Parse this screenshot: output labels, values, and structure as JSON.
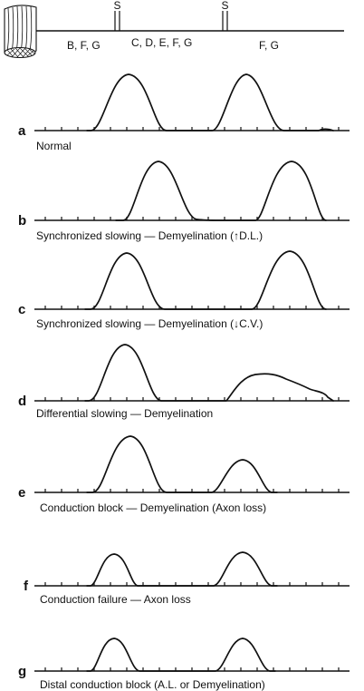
{
  "header": {
    "stim_marker_1": "S",
    "stim_marker_2": "S",
    "segment_1": "B, F, G",
    "segment_2": "C, D, E, F, G",
    "segment_3": "F, G"
  },
  "panels": [
    {
      "id": "a",
      "letter": "a",
      "caption": "Normal"
    },
    {
      "id": "b",
      "letter": "b",
      "caption": "Synchronized slowing — Demyelination (↑D.L.)"
    },
    {
      "id": "c",
      "letter": "c",
      "caption": "Synchronized slowing — Demyelination (↓C.V.)"
    },
    {
      "id": "d",
      "letter": "d",
      "caption": "Differential slowing — Demyelination"
    },
    {
      "id": "e",
      "letter": "e",
      "caption": "Conduction block — Demyelination (Axon loss)"
    },
    {
      "id": "f",
      "letter": "f",
      "caption": "Conduction failure — Axon loss"
    },
    {
      "id": "g",
      "letter": "g",
      "caption": "Distal conduction block (A.L. or Demyelination)"
    }
  ]
}
